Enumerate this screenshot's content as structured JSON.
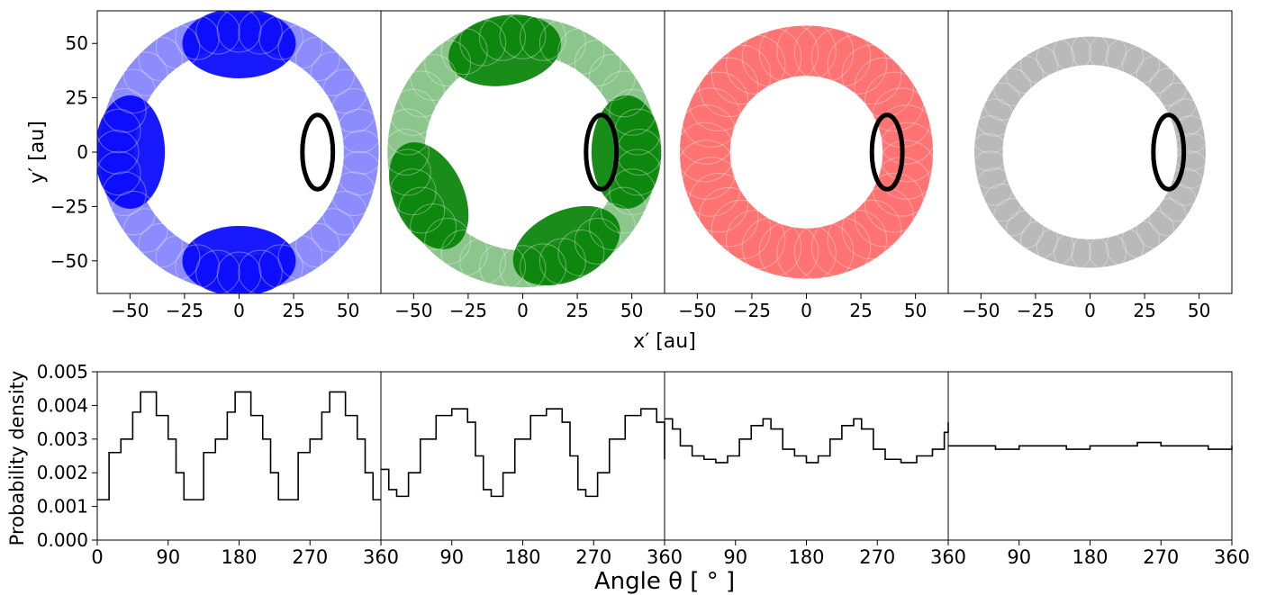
{
  "chart_data": [
    {
      "type": "scatter",
      "panel": "orbit-blue",
      "xlabel": "x′ [au]",
      "ylabel": "y′ [au]",
      "xlim": [
        -65,
        65
      ],
      "ylim": [
        -65,
        65
      ],
      "xticks": [
        -50,
        -25,
        0,
        25,
        50
      ],
      "yticks": [
        -50,
        -25,
        0,
        25,
        50
      ],
      "color": "#0000ff",
      "ring_radii": [
        48,
        64
      ],
      "lobe_angles_deg": [
        90,
        180,
        270
      ],
      "inner_ellipse": {
        "center": [
          36,
          0
        ],
        "radii": [
          7,
          17
        ],
        "color": "#000000"
      }
    },
    {
      "type": "scatter",
      "panel": "orbit-green",
      "xlim": [
        -65,
        65
      ],
      "ylim": [
        -65,
        65
      ],
      "xticks": [
        -50,
        -25,
        0,
        25,
        50
      ],
      "color": "#008000",
      "ring_radii": [
        45,
        62
      ],
      "lobe_angles_deg": [
        0,
        100,
        205,
        295
      ],
      "inner_ellipse": {
        "center": [
          36,
          0
        ],
        "radii": [
          7,
          17
        ],
        "color": "#000000"
      }
    },
    {
      "type": "scatter",
      "panel": "orbit-red",
      "xlim": [
        -65,
        65
      ],
      "ylim": [
        -65,
        65
      ],
      "xticks": [
        -50,
        -25,
        0,
        25,
        50
      ],
      "color": "#ff0000",
      "ring_radii": [
        35,
        58
      ],
      "inner_ellipse": {
        "center": [
          37,
          0
        ],
        "radii": [
          7,
          17
        ],
        "color": "#000000"
      }
    },
    {
      "type": "scatter",
      "panel": "orbit-gray",
      "xlim": [
        -65,
        65
      ],
      "ylim": [
        -65,
        65
      ],
      "xticks": [
        -50,
        -25,
        0,
        25,
        50
      ],
      "color": "#808080",
      "ring_radii": [
        40,
        53
      ],
      "inner_ellipse": {
        "center": [
          36,
          0
        ],
        "radii": [
          7,
          17
        ],
        "color": "#000000"
      }
    },
    {
      "type": "line",
      "panel": "hist-1",
      "xlabel": "Angle θ [ ° ]",
      "ylabel": "Probability density",
      "xlim": [
        0,
        360
      ],
      "ylim": [
        0,
        0.005
      ],
      "xticks": [
        0,
        90,
        180,
        270,
        360
      ],
      "xtick_labels": [
        "0",
        "90",
        "180",
        "270",
        "360"
      ],
      "yticks": [
        0,
        0.001,
        0.002,
        0.003,
        0.004,
        0.005
      ],
      "ytick_labels": [
        "0.000",
        "0.001",
        "0.002",
        "0.003",
        "0.004",
        "0.005"
      ],
      "x": [
        0,
        15,
        30,
        45,
        55,
        65,
        75,
        90,
        100,
        110,
        120,
        135,
        150,
        165,
        175,
        185,
        195,
        210,
        220,
        230,
        240,
        255,
        270,
        285,
        295,
        305,
        315,
        330,
        340,
        350,
        360
      ],
      "values": [
        0.0012,
        0.0026,
        0.003,
        0.0038,
        0.0044,
        0.0044,
        0.0037,
        0.003,
        0.002,
        0.0012,
        0.0012,
        0.0026,
        0.003,
        0.0038,
        0.0044,
        0.0044,
        0.0037,
        0.003,
        0.002,
        0.0012,
        0.0012,
        0.0026,
        0.003,
        0.0038,
        0.0044,
        0.0044,
        0.0037,
        0.003,
        0.002,
        0.0012,
        0.0012
      ]
    },
    {
      "type": "line",
      "panel": "hist-2",
      "xlim": [
        0,
        360
      ],
      "ylim": [
        0,
        0.005
      ],
      "xticks": [
        0,
        90,
        180,
        270,
        360
      ],
      "xtick_labels": [
        "360",
        "90",
        "180",
        "270",
        "360"
      ],
      "x": [
        0,
        10,
        20,
        35,
        50,
        70,
        90,
        110,
        120,
        130,
        140,
        155,
        170,
        190,
        210,
        230,
        240,
        250,
        260,
        275,
        290,
        310,
        330,
        350,
        360
      ],
      "values": [
        0.0021,
        0.0015,
        0.0013,
        0.002,
        0.003,
        0.0037,
        0.0039,
        0.0035,
        0.0025,
        0.0015,
        0.0013,
        0.002,
        0.003,
        0.0037,
        0.0039,
        0.0035,
        0.0025,
        0.0015,
        0.0013,
        0.002,
        0.003,
        0.0037,
        0.0039,
        0.0035,
        0.0024
      ]
    },
    {
      "type": "line",
      "panel": "hist-3",
      "xlim": [
        0,
        360
      ],
      "ylim": [
        0,
        0.005
      ],
      "xticks": [
        0,
        90,
        180,
        270,
        360
      ],
      "xtick_labels": [
        "360",
        "90",
        "180",
        "270",
        "360"
      ],
      "x": [
        0,
        10,
        20,
        35,
        50,
        65,
        80,
        95,
        110,
        125,
        135,
        150,
        165,
        180,
        195,
        210,
        225,
        240,
        250,
        265,
        280,
        300,
        320,
        340,
        355,
        360
      ],
      "values": [
        0.0036,
        0.0033,
        0.0028,
        0.0025,
        0.0024,
        0.0023,
        0.0025,
        0.003,
        0.0034,
        0.0036,
        0.0033,
        0.0027,
        0.0025,
        0.0023,
        0.0025,
        0.003,
        0.0034,
        0.0036,
        0.0033,
        0.0027,
        0.0024,
        0.0023,
        0.0025,
        0.0027,
        0.0032,
        0.0035
      ]
    },
    {
      "type": "line",
      "panel": "hist-4",
      "xlim": [
        0,
        360
      ],
      "ylim": [
        0,
        0.005
      ],
      "xticks": [
        0,
        90,
        180,
        270,
        360
      ],
      "xtick_labels": [
        "360",
        "90",
        "180",
        "270",
        "360"
      ],
      "x": [
        0,
        30,
        60,
        90,
        120,
        150,
        180,
        210,
        240,
        270,
        300,
        330,
        360
      ],
      "values": [
        0.0028,
        0.0028,
        0.0027,
        0.0028,
        0.0028,
        0.0027,
        0.0028,
        0.0028,
        0.0029,
        0.0028,
        0.0028,
        0.0027,
        0.0028
      ]
    }
  ]
}
